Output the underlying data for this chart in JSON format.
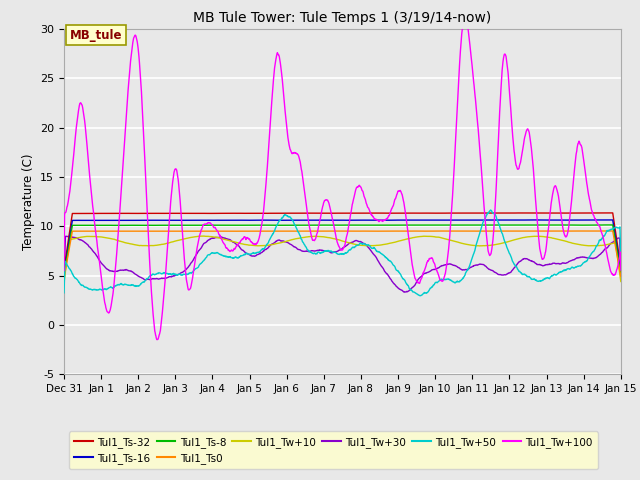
{
  "title": "MB Tule Tower: Tule Temps 1 (3/19/14-now)",
  "ylabel": "Temperature (C)",
  "ylim": [
    -5,
    30
  ],
  "yticks": [
    -5,
    0,
    5,
    10,
    15,
    20,
    25,
    30
  ],
  "xtick_labels": [
    "Dec 31",
    "Jan 1",
    "Jan 2",
    "Jan 3",
    "Jan 4",
    "Jan 5",
    "Jan 6",
    "Jan 7",
    "Jan 8",
    "Jan 9",
    "Jan 10",
    "Jan 11",
    "Jan 12",
    "Jan 13",
    "Jan 14",
    "Jan 15"
  ],
  "plot_bg_color": "#e8e8e8",
  "fig_bg_color": "#e8e8e8",
  "grid_color": "#ffffff",
  "mb_tule_text": "MB_tule",
  "mb_tule_fg": "#880000",
  "mb_tule_bg": "#ffffcc",
  "mb_tule_edge": "#999900",
  "legend_bg": "#ffffcc",
  "series_colors": {
    "Tul1_Ts-32": "#cc0000",
    "Tul1_Ts-16": "#0000cc",
    "Tul1_Ts-8": "#00bb00",
    "Tul1_Ts0": "#ff8800",
    "Tul1_Tw+10": "#cccc00",
    "Tul1_Tw+30": "#8800cc",
    "Tul1_Tw+50": "#00cccc",
    "Tul1_Tw+100": "#ff00ff"
  }
}
